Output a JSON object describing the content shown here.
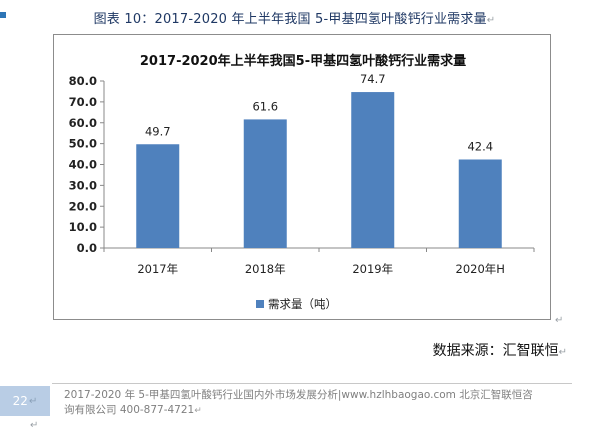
{
  "caption": {
    "text": "图表  10：2017-2020 年上半年我国 5-甲基四氢叶酸钙行业需求量",
    "mark": "↵"
  },
  "chart_data": {
    "type": "bar",
    "title": "2017-2020年上半年我国5-甲基四氢叶酸钙行业需求量",
    "categories": [
      "2017年",
      "2018年",
      "2019年",
      "2020年H"
    ],
    "series": [
      {
        "name": "需求量（吨）",
        "values": [
          49.7,
          61.6,
          74.7,
          42.4
        ]
      }
    ],
    "data_labels": [
      "49.7",
      "61.6",
      "74.7",
      "42.4"
    ],
    "y_ticks": [
      "0.0",
      "10.0",
      "20.0",
      "30.0",
      "40.0",
      "50.0",
      "60.0",
      "70.0",
      "80.0"
    ],
    "ylim": [
      0,
      80
    ],
    "grid": false,
    "legend_position": "bottom",
    "bar_color": "#4f81bd"
  },
  "source": {
    "text": "数据来源：汇智联恒",
    "mark": "↵"
  },
  "footer": {
    "page_number": "22",
    "page_mark": "↵",
    "line1": "2017-2020 年 5-甲基四氢叶酸钙行业国内外市场发展分析|www.hzlhbaogao.com 北京汇智联恒咨",
    "line2": "询有限公司  400-877-4721",
    "line_mark": "↵",
    "bottom_mark": "↵"
  }
}
